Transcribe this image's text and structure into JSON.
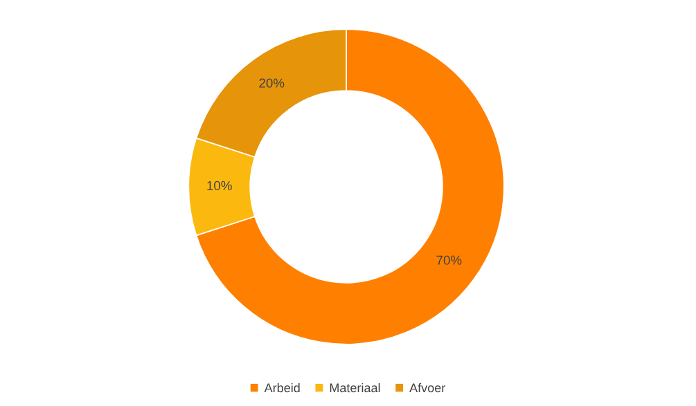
{
  "chart_data": {
    "type": "donut",
    "categories": [
      "Arbeid",
      "Materiaal",
      "Afvoer"
    ],
    "values": [
      70,
      10,
      20
    ],
    "colors": [
      "#ff8000",
      "#fbb80f",
      "#e6940a"
    ],
    "value_labels": [
      "70%",
      "10%",
      "20%"
    ],
    "legend": "bottom"
  }
}
